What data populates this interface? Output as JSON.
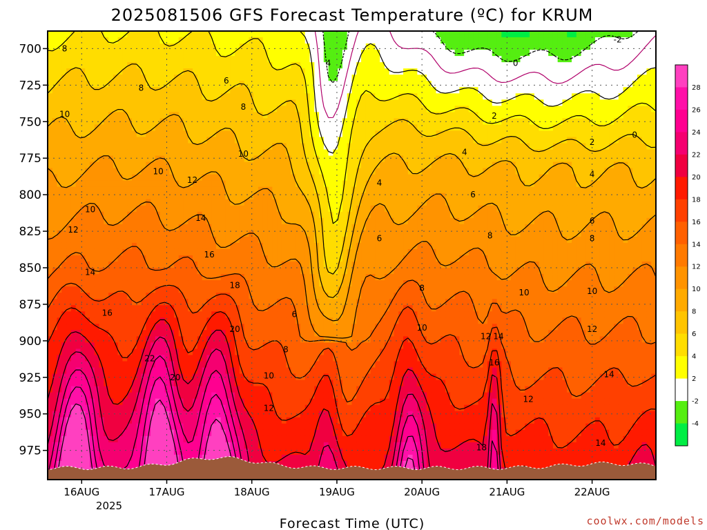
{
  "title": "2025081506 GFS Forecast Temperature (ºC) for KRUM",
  "credit": "coolwx.com/models",
  "chart_data": {
    "type": "heatmap",
    "title": "2025081506 GFS Forecast Temperature (ºC) for KRUM",
    "xlabel": "Forecast Time (UTC)",
    "ylabel": "",
    "x_ticks": [
      "16AUG",
      "17AUG",
      "18AUG",
      "19AUG",
      "20AUG",
      "21AUG",
      "22AUG"
    ],
    "x_tick_sublabel": "2025",
    "x_range_days": [
      15.6,
      22.75
    ],
    "y_ticks": [
      700,
      725,
      750,
      775,
      800,
      825,
      850,
      875,
      900,
      925,
      950,
      975
    ],
    "y_range_hpa": [
      688,
      995
    ],
    "grid": true,
    "colorbar": {
      "ticks": [
        -4,
        -2,
        2,
        4,
        6,
        8,
        10,
        12,
        14,
        16,
        18,
        20,
        22,
        24,
        26,
        28
      ],
      "bins": [
        {
          "lo": -6,
          "hi": -4,
          "color": "#00ee44"
        },
        {
          "lo": -4,
          "hi": -2,
          "color": "#55ee11"
        },
        {
          "lo": -2,
          "hi": 2,
          "color": "#ffffff"
        },
        {
          "lo": 2,
          "hi": 4,
          "color": "#ffff00"
        },
        {
          "lo": 4,
          "hi": 6,
          "color": "#ffdd00"
        },
        {
          "lo": 6,
          "hi": 8,
          "color": "#ffc400"
        },
        {
          "lo": 8,
          "hi": 10,
          "color": "#ffaa00"
        },
        {
          "lo": 10,
          "hi": 12,
          "color": "#ff9300"
        },
        {
          "lo": 12,
          "hi": 14,
          "color": "#ff7a00"
        },
        {
          "lo": 14,
          "hi": 16,
          "color": "#ff6000"
        },
        {
          "lo": 16,
          "hi": 18,
          "color": "#ff4000"
        },
        {
          "lo": 18,
          "hi": 20,
          "color": "#ff1a00"
        },
        {
          "lo": 20,
          "hi": 22,
          "color": "#f00040"
        },
        {
          "lo": 22,
          "hi": 24,
          "color": "#f50070"
        },
        {
          "lo": 24,
          "hi": 26,
          "color": "#ff0090"
        },
        {
          "lo": 26,
          "hi": 28,
          "color": "#ff10a8"
        },
        {
          "lo": 28,
          "hi": 30,
          "color": "#ff40c0"
        }
      ]
    },
    "terrain_color": "#9b5a3a",
    "contour_labels": [
      {
        "text": "8",
        "t": 15.8,
        "p": 700
      },
      {
        "text": "8",
        "t": 16.7,
        "p": 727
      },
      {
        "text": "6",
        "t": 17.7,
        "p": 722
      },
      {
        "text": "4",
        "t": 18.9,
        "p": 710
      },
      {
        "text": "10",
        "t": 15.8,
        "p": 745
      },
      {
        "text": "8",
        "t": 17.9,
        "p": 740
      },
      {
        "text": "10",
        "t": 17.9,
        "p": 772
      },
      {
        "text": "10",
        "t": 16.9,
        "p": 784
      },
      {
        "text": "12",
        "t": 17.3,
        "p": 790
      },
      {
        "text": "10",
        "t": 16.1,
        "p": 810
      },
      {
        "text": "12",
        "t": 15.9,
        "p": 824
      },
      {
        "text": "14",
        "t": 17.4,
        "p": 816
      },
      {
        "text": "16",
        "t": 17.5,
        "p": 841
      },
      {
        "text": "14",
        "t": 16.1,
        "p": 853
      },
      {
        "text": "18",
        "t": 17.8,
        "p": 862
      },
      {
        "text": "16",
        "t": 16.3,
        "p": 881
      },
      {
        "text": "20",
        "t": 17.8,
        "p": 892
      },
      {
        "text": "22",
        "t": 16.8,
        "p": 912
      },
      {
        "text": "20",
        "t": 17.1,
        "p": 925
      },
      {
        "text": "6",
        "t": 18.5,
        "p": 882
      },
      {
        "text": "8",
        "t": 18.4,
        "p": 906
      },
      {
        "text": "10",
        "t": 18.2,
        "p": 924
      },
      {
        "text": "12",
        "t": 18.2,
        "p": 946
      },
      {
        "text": "4",
        "t": 19.5,
        "p": 792
      },
      {
        "text": "6",
        "t": 19.5,
        "p": 830
      },
      {
        "text": "8",
        "t": 20.0,
        "p": 864
      },
      {
        "text": "10",
        "t": 20.0,
        "p": 891
      },
      {
        "text": "4",
        "t": 20.5,
        "p": 771
      },
      {
        "text": "6",
        "t": 20.6,
        "p": 800
      },
      {
        "text": "8",
        "t": 20.8,
        "p": 828
      },
      {
        "text": "10",
        "t": 21.2,
        "p": 867
      },
      {
        "text": "12",
        "t": 20.75,
        "p": 897
      },
      {
        "text": "14",
        "t": 20.9,
        "p": 897
      },
      {
        "text": "16",
        "t": 20.85,
        "p": 915
      },
      {
        "text": "12",
        "t": 21.25,
        "p": 940
      },
      {
        "text": "18",
        "t": 20.7,
        "p": 973
      },
      {
        "text": "2",
        "t": 20.85,
        "p": 746
      },
      {
        "text": "0",
        "t": 21.1,
        "p": 710
      },
      {
        "text": "-2",
        "t": 22.3,
        "p": 694
      },
      {
        "text": "2",
        "t": 22.0,
        "p": 764
      },
      {
        "text": "0",
        "t": 22.5,
        "p": 759
      },
      {
        "text": "4",
        "t": 22.0,
        "p": 786
      },
      {
        "text": "6",
        "t": 22.0,
        "p": 818
      },
      {
        "text": "8",
        "t": 22.0,
        "p": 830
      },
      {
        "text": "10",
        "t": 22.0,
        "p": 866
      },
      {
        "text": "12",
        "t": 22.0,
        "p": 892
      },
      {
        "text": "14",
        "t": 22.2,
        "p": 923
      },
      {
        "text": "14",
        "t": 22.1,
        "p": 970
      }
    ]
  }
}
